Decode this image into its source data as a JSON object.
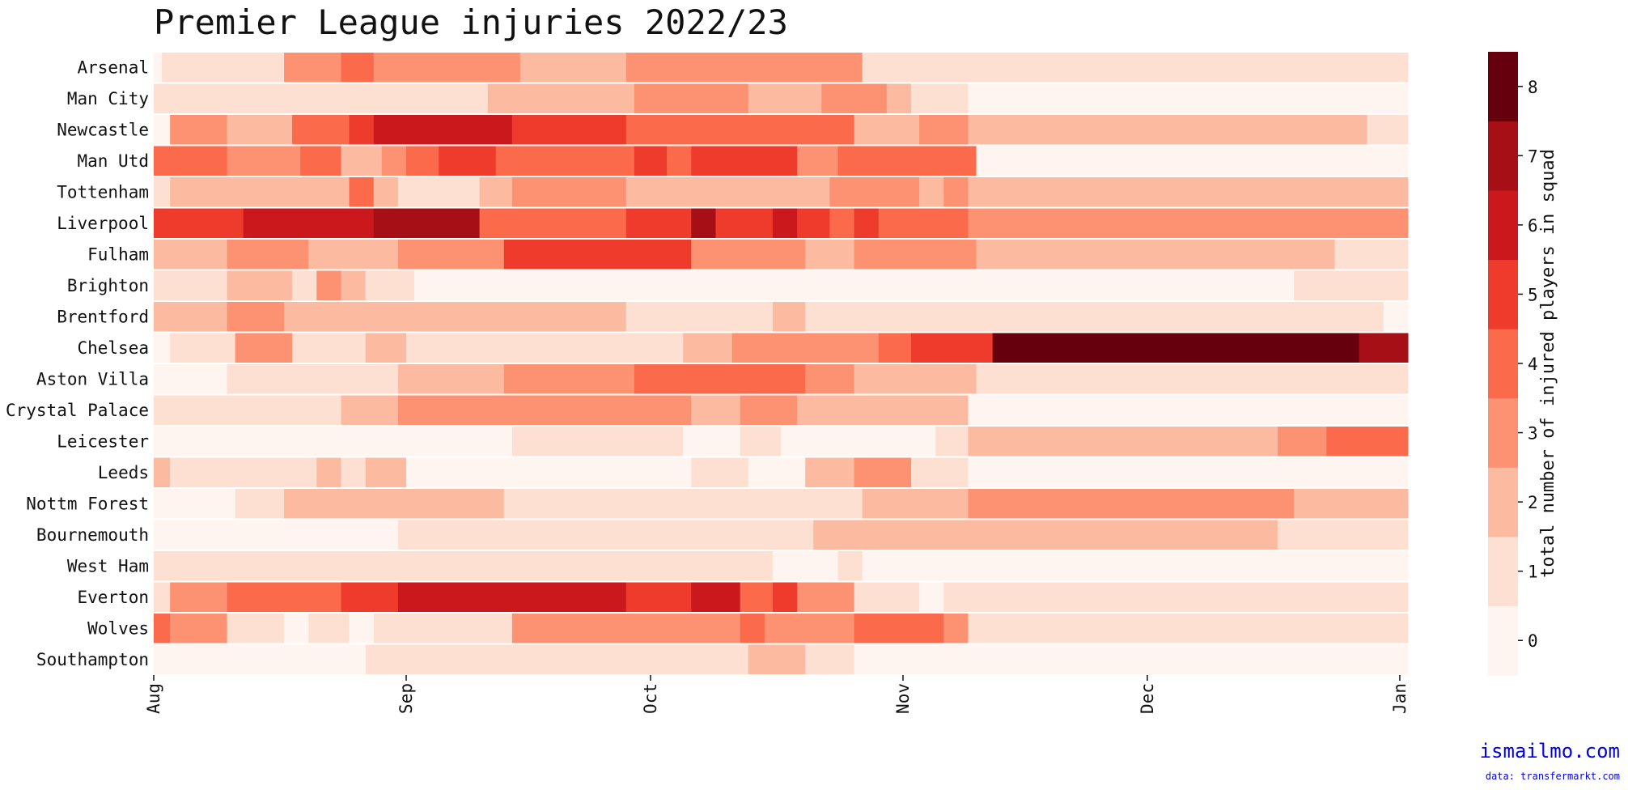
{
  "chart_data": {
    "type": "heatmap",
    "title": "Premier League injuries 2022/23",
    "x_ticks": [
      "Aug",
      "Sep",
      "Oct",
      "Nov",
      "Dec",
      "Jan"
    ],
    "date_range": [
      "2022-08-01",
      "2023-01-02"
    ],
    "colorbar": {
      "label": "total number of injured players in squad",
      "ticks": [
        0,
        1,
        2,
        3,
        4,
        5,
        6,
        7,
        8
      ],
      "range": [
        0,
        8
      ],
      "colors": [
        "#fff5f0",
        "#fee0d2",
        "#fcbba1",
        "#fc9272",
        "#fb6a4a",
        "#ef3b2c",
        "#cb181d",
        "#a50f15",
        "#67000d"
      ]
    },
    "teams": [
      {
        "name": "Arsenal",
        "segments": [
          [
            "08-01",
            0
          ],
          [
            "08-02",
            1
          ],
          [
            "08-17",
            3
          ],
          [
            "08-24",
            4
          ],
          [
            "08-28",
            3
          ],
          [
            "09-15",
            2
          ],
          [
            "09-28",
            3
          ],
          [
            "10-27",
            1
          ]
        ]
      },
      {
        "name": "Man City",
        "segments": [
          [
            "08-01",
            1
          ],
          [
            "09-11",
            2
          ],
          [
            "09-29",
            3
          ],
          [
            "10-13",
            2
          ],
          [
            "10-22",
            3
          ],
          [
            "10-30",
            2
          ],
          [
            "11-02",
            1
          ],
          [
            "11-09",
            0
          ]
        ]
      },
      {
        "name": "Newcastle",
        "segments": [
          [
            "08-01",
            0
          ],
          [
            "08-03",
            3
          ],
          [
            "08-10",
            2
          ],
          [
            "08-18",
            4
          ],
          [
            "08-25",
            5
          ],
          [
            "08-28",
            6
          ],
          [
            "09-14",
            5
          ],
          [
            "09-28",
            4
          ],
          [
            "10-26",
            2
          ],
          [
            "11-03",
            3
          ],
          [
            "11-09",
            2
          ],
          [
            "12-28",
            1
          ]
        ]
      },
      {
        "name": "Man Utd",
        "segments": [
          [
            "08-01",
            4
          ],
          [
            "08-10",
            3
          ],
          [
            "08-19",
            4
          ],
          [
            "08-24",
            2
          ],
          [
            "08-29",
            3
          ],
          [
            "09-01",
            4
          ],
          [
            "09-05",
            5
          ],
          [
            "09-12",
            4
          ],
          [
            "09-29",
            5
          ],
          [
            "10-03",
            4
          ],
          [
            "10-06",
            5
          ],
          [
            "10-19",
            3
          ],
          [
            "10-24",
            4
          ],
          [
            "11-10",
            0
          ]
        ]
      },
      {
        "name": "Tottenham",
        "segments": [
          [
            "08-01",
            1
          ],
          [
            "08-03",
            2
          ],
          [
            "08-25",
            4
          ],
          [
            "08-28",
            2
          ],
          [
            "08-31",
            1
          ],
          [
            "09-10",
            2
          ],
          [
            "09-14",
            3
          ],
          [
            "09-28",
            2
          ],
          [
            "10-23",
            3
          ],
          [
            "11-03",
            2
          ],
          [
            "11-06",
            3
          ],
          [
            "11-09",
            2
          ]
        ]
      },
      {
        "name": "Liverpool",
        "segments": [
          [
            "08-01",
            5
          ],
          [
            "08-12",
            6
          ],
          [
            "08-28",
            7
          ],
          [
            "09-10",
            4
          ],
          [
            "09-28",
            5
          ],
          [
            "10-06",
            7
          ],
          [
            "10-09",
            5
          ],
          [
            "10-16",
            6
          ],
          [
            "10-19",
            5
          ],
          [
            "10-23",
            4
          ],
          [
            "10-26",
            5
          ],
          [
            "10-29",
            4
          ],
          [
            "11-09",
            3
          ]
        ]
      },
      {
        "name": "Fulham",
        "segments": [
          [
            "08-01",
            2
          ],
          [
            "08-10",
            3
          ],
          [
            "08-20",
            2
          ],
          [
            "08-31",
            3
          ],
          [
            "09-13",
            5
          ],
          [
            "10-06",
            3
          ],
          [
            "10-20",
            2
          ],
          [
            "10-26",
            3
          ],
          [
            "11-10",
            2
          ],
          [
            "12-24",
            1
          ]
        ]
      },
      {
        "name": "Brighton",
        "segments": [
          [
            "08-01",
            1
          ],
          [
            "08-10",
            2
          ],
          [
            "08-18",
            1
          ],
          [
            "08-21",
            3
          ],
          [
            "08-24",
            2
          ],
          [
            "08-27",
            1
          ],
          [
            "09-02",
            0
          ],
          [
            "12-19",
            1
          ]
        ]
      },
      {
        "name": "Brentford",
        "segments": [
          [
            "08-01",
            2
          ],
          [
            "08-10",
            3
          ],
          [
            "08-17",
            2
          ],
          [
            "09-28",
            1
          ],
          [
            "10-16",
            2
          ],
          [
            "10-20",
            1
          ],
          [
            "12-30",
            0
          ]
        ]
      },
      {
        "name": "Chelsea",
        "segments": [
          [
            "08-01",
            0
          ],
          [
            "08-03",
            1
          ],
          [
            "08-11",
            3
          ],
          [
            "08-18",
            1
          ],
          [
            "08-27",
            2
          ],
          [
            "09-01",
            1
          ],
          [
            "10-05",
            2
          ],
          [
            "10-11",
            3
          ],
          [
            "10-29",
            4
          ],
          [
            "11-02",
            5
          ],
          [
            "11-12",
            8
          ],
          [
            "12-27",
            7
          ]
        ]
      },
      {
        "name": "Aston Villa",
        "segments": [
          [
            "08-01",
            0
          ],
          [
            "08-10",
            1
          ],
          [
            "08-31",
            2
          ],
          [
            "09-13",
            3
          ],
          [
            "09-29",
            4
          ],
          [
            "10-20",
            3
          ],
          [
            "10-26",
            2
          ],
          [
            "11-10",
            1
          ]
        ]
      },
      {
        "name": "Crystal Palace",
        "segments": [
          [
            "08-01",
            1
          ],
          [
            "08-24",
            2
          ],
          [
            "08-31",
            3
          ],
          [
            "10-06",
            2
          ],
          [
            "10-12",
            3
          ],
          [
            "10-19",
            2
          ],
          [
            "11-09",
            0
          ]
        ]
      },
      {
        "name": "Leicester",
        "segments": [
          [
            "08-01",
            0
          ],
          [
            "09-14",
            1
          ],
          [
            "10-05",
            0
          ],
          [
            "10-12",
            1
          ],
          [
            "10-17",
            0
          ],
          [
            "11-05",
            1
          ],
          [
            "11-09",
            2
          ],
          [
            "12-17",
            3
          ],
          [
            "12-23",
            4
          ]
        ]
      },
      {
        "name": "Leeds",
        "segments": [
          [
            "08-01",
            2
          ],
          [
            "08-03",
            1
          ],
          [
            "08-21",
            2
          ],
          [
            "08-24",
            1
          ],
          [
            "08-27",
            2
          ],
          [
            "09-01",
            0
          ],
          [
            "10-06",
            1
          ],
          [
            "10-13",
            0
          ],
          [
            "10-20",
            2
          ],
          [
            "10-26",
            3
          ],
          [
            "11-02",
            1
          ],
          [
            "11-09",
            0
          ]
        ]
      },
      {
        "name": "Nottm Forest",
        "segments": [
          [
            "08-01",
            0
          ],
          [
            "08-11",
            1
          ],
          [
            "08-17",
            2
          ],
          [
            "09-13",
            1
          ],
          [
            "10-27",
            2
          ],
          [
            "11-09",
            3
          ],
          [
            "12-19",
            2
          ]
        ]
      },
      {
        "name": "Bournemouth",
        "segments": [
          [
            "08-01",
            0
          ],
          [
            "08-31",
            1
          ],
          [
            "10-21",
            2
          ],
          [
            "12-17",
            1
          ]
        ]
      },
      {
        "name": "West Ham",
        "segments": [
          [
            "08-01",
            1
          ],
          [
            "10-16",
            0
          ],
          [
            "10-24",
            1
          ],
          [
            "10-27",
            0
          ]
        ]
      },
      {
        "name": "Everton",
        "segments": [
          [
            "08-01",
            1
          ],
          [
            "08-03",
            3
          ],
          [
            "08-10",
            4
          ],
          [
            "08-24",
            5
          ],
          [
            "08-31",
            6
          ],
          [
            "09-28",
            5
          ],
          [
            "10-06",
            6
          ],
          [
            "10-12",
            4
          ],
          [
            "10-16",
            5
          ],
          [
            "10-19",
            3
          ],
          [
            "10-26",
            1
          ],
          [
            "11-03",
            0
          ],
          [
            "11-06",
            1
          ]
        ]
      },
      {
        "name": "Wolves",
        "segments": [
          [
            "08-01",
            4
          ],
          [
            "08-03",
            3
          ],
          [
            "08-10",
            1
          ],
          [
            "08-17",
            0
          ],
          [
            "08-20",
            1
          ],
          [
            "08-25",
            0
          ],
          [
            "08-28",
            1
          ],
          [
            "09-14",
            3
          ],
          [
            "10-12",
            4
          ],
          [
            "10-15",
            3
          ],
          [
            "10-26",
            4
          ],
          [
            "11-06",
            3
          ],
          [
            "11-09",
            1
          ]
        ]
      },
      {
        "name": "Southampton",
        "segments": [
          [
            "08-01",
            0
          ],
          [
            "08-27",
            1
          ],
          [
            "10-13",
            2
          ],
          [
            "10-20",
            1
          ],
          [
            "10-26",
            0
          ]
        ]
      }
    ]
  },
  "credit": {
    "main": "ismailmo.com",
    "sub": "data: transfermarkt.com"
  }
}
